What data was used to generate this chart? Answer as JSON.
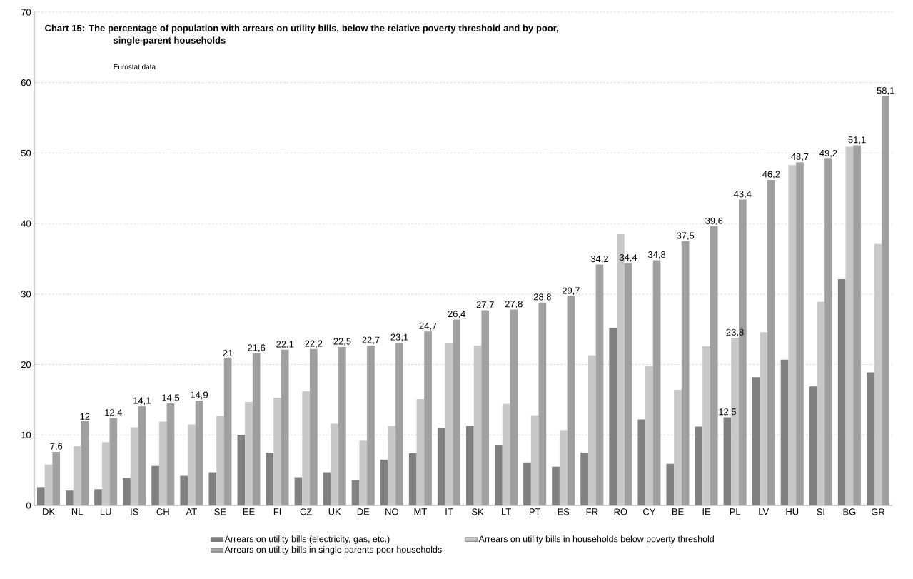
{
  "chart_data": {
    "type": "bar",
    "title": "Chart 15: The percentage of population with arrears on utility bills, below the relative poverty threshold and by poor, single-parent households",
    "annotations": [
      "Eurostat data"
    ],
    "categories": [
      "DK",
      "NL",
      "LU",
      "IS",
      "CH",
      "AT",
      "SE",
      "EE",
      "FI",
      "CZ",
      "UK",
      "DE",
      "NO",
      "MT",
      "IT",
      "SK",
      "LT",
      "PT",
      "ES",
      "FR",
      "RO",
      "CY",
      "BE",
      "IE",
      "PL",
      "LV",
      "HU",
      "SI",
      "BG",
      "GR"
    ],
    "series": [
      {
        "name": "Arrears on utility bills (electricity, gas, etc.)",
        "color": "#808080",
        "values": [
          2.6,
          2.1,
          2.3,
          3.9,
          5.6,
          4.2,
          4.7,
          10.0,
          7.5,
          4.0,
          4.7,
          3.6,
          6.5,
          7.4,
          11.0,
          11.3,
          8.5,
          6.1,
          5.5,
          7.5,
          25.2,
          12.2,
          5.9,
          11.2,
          12.5,
          18.2,
          20.7,
          16.9,
          32.1,
          18.9
        ],
        "value_labels": [
          null,
          null,
          null,
          null,
          null,
          null,
          null,
          null,
          null,
          null,
          null,
          null,
          null,
          null,
          null,
          null,
          null,
          null,
          null,
          null,
          null,
          null,
          null,
          null,
          "12,5",
          null,
          null,
          null,
          null,
          null
        ]
      },
      {
        "name": "Arrears on utility bills in households below poverty threshold",
        "color": "#c8c8c8",
        "values": [
          5.8,
          8.4,
          9.0,
          11.1,
          11.9,
          11.5,
          12.7,
          14.7,
          15.3,
          16.2,
          11.6,
          9.2,
          11.3,
          15.1,
          23.1,
          22.7,
          14.4,
          12.8,
          10.7,
          21.3,
          38.5,
          19.8,
          16.4,
          22.6,
          23.8,
          24.6,
          48.3,
          28.9,
          50.9,
          37.1
        ],
        "value_labels": [
          null,
          null,
          null,
          null,
          null,
          null,
          null,
          null,
          null,
          null,
          null,
          null,
          null,
          null,
          null,
          null,
          null,
          null,
          null,
          null,
          null,
          null,
          null,
          null,
          "23,8",
          null,
          null,
          null,
          null,
          null
        ]
      },
      {
        "name": "Arrears on utility bills in single parents poor households",
        "color": "#a0a0a0",
        "values": [
          7.6,
          12,
          12.4,
          14.1,
          14.5,
          14.9,
          21,
          21.6,
          22.1,
          22.2,
          22.5,
          22.7,
          23.1,
          24.7,
          26.4,
          27.7,
          27.8,
          28.8,
          29.7,
          34.2,
          34.4,
          34.8,
          37.5,
          39.6,
          43.4,
          46.2,
          48.7,
          49.2,
          51.1,
          58.1
        ],
        "value_labels": [
          "7,6",
          "12",
          "12,4",
          "14,1",
          "14,5",
          "14,9",
          "21",
          "21,6",
          "22,1",
          "22,2",
          "22,5",
          "22,7",
          "23,1",
          "24,7",
          "26,4",
          "27,7",
          "27,8",
          "28,8",
          "29,7",
          "34,2",
          "34,4",
          "34,8",
          "37,5",
          "39,6",
          "43,4",
          "46,2",
          "48,7",
          "49,2",
          "51,1",
          "58,1"
        ]
      }
    ],
    "ylim": [
      0,
      70
    ],
    "yticks": [
      0,
      10,
      20,
      30,
      40,
      50,
      60,
      70
    ],
    "grid": "y",
    "legend": "bottom"
  }
}
